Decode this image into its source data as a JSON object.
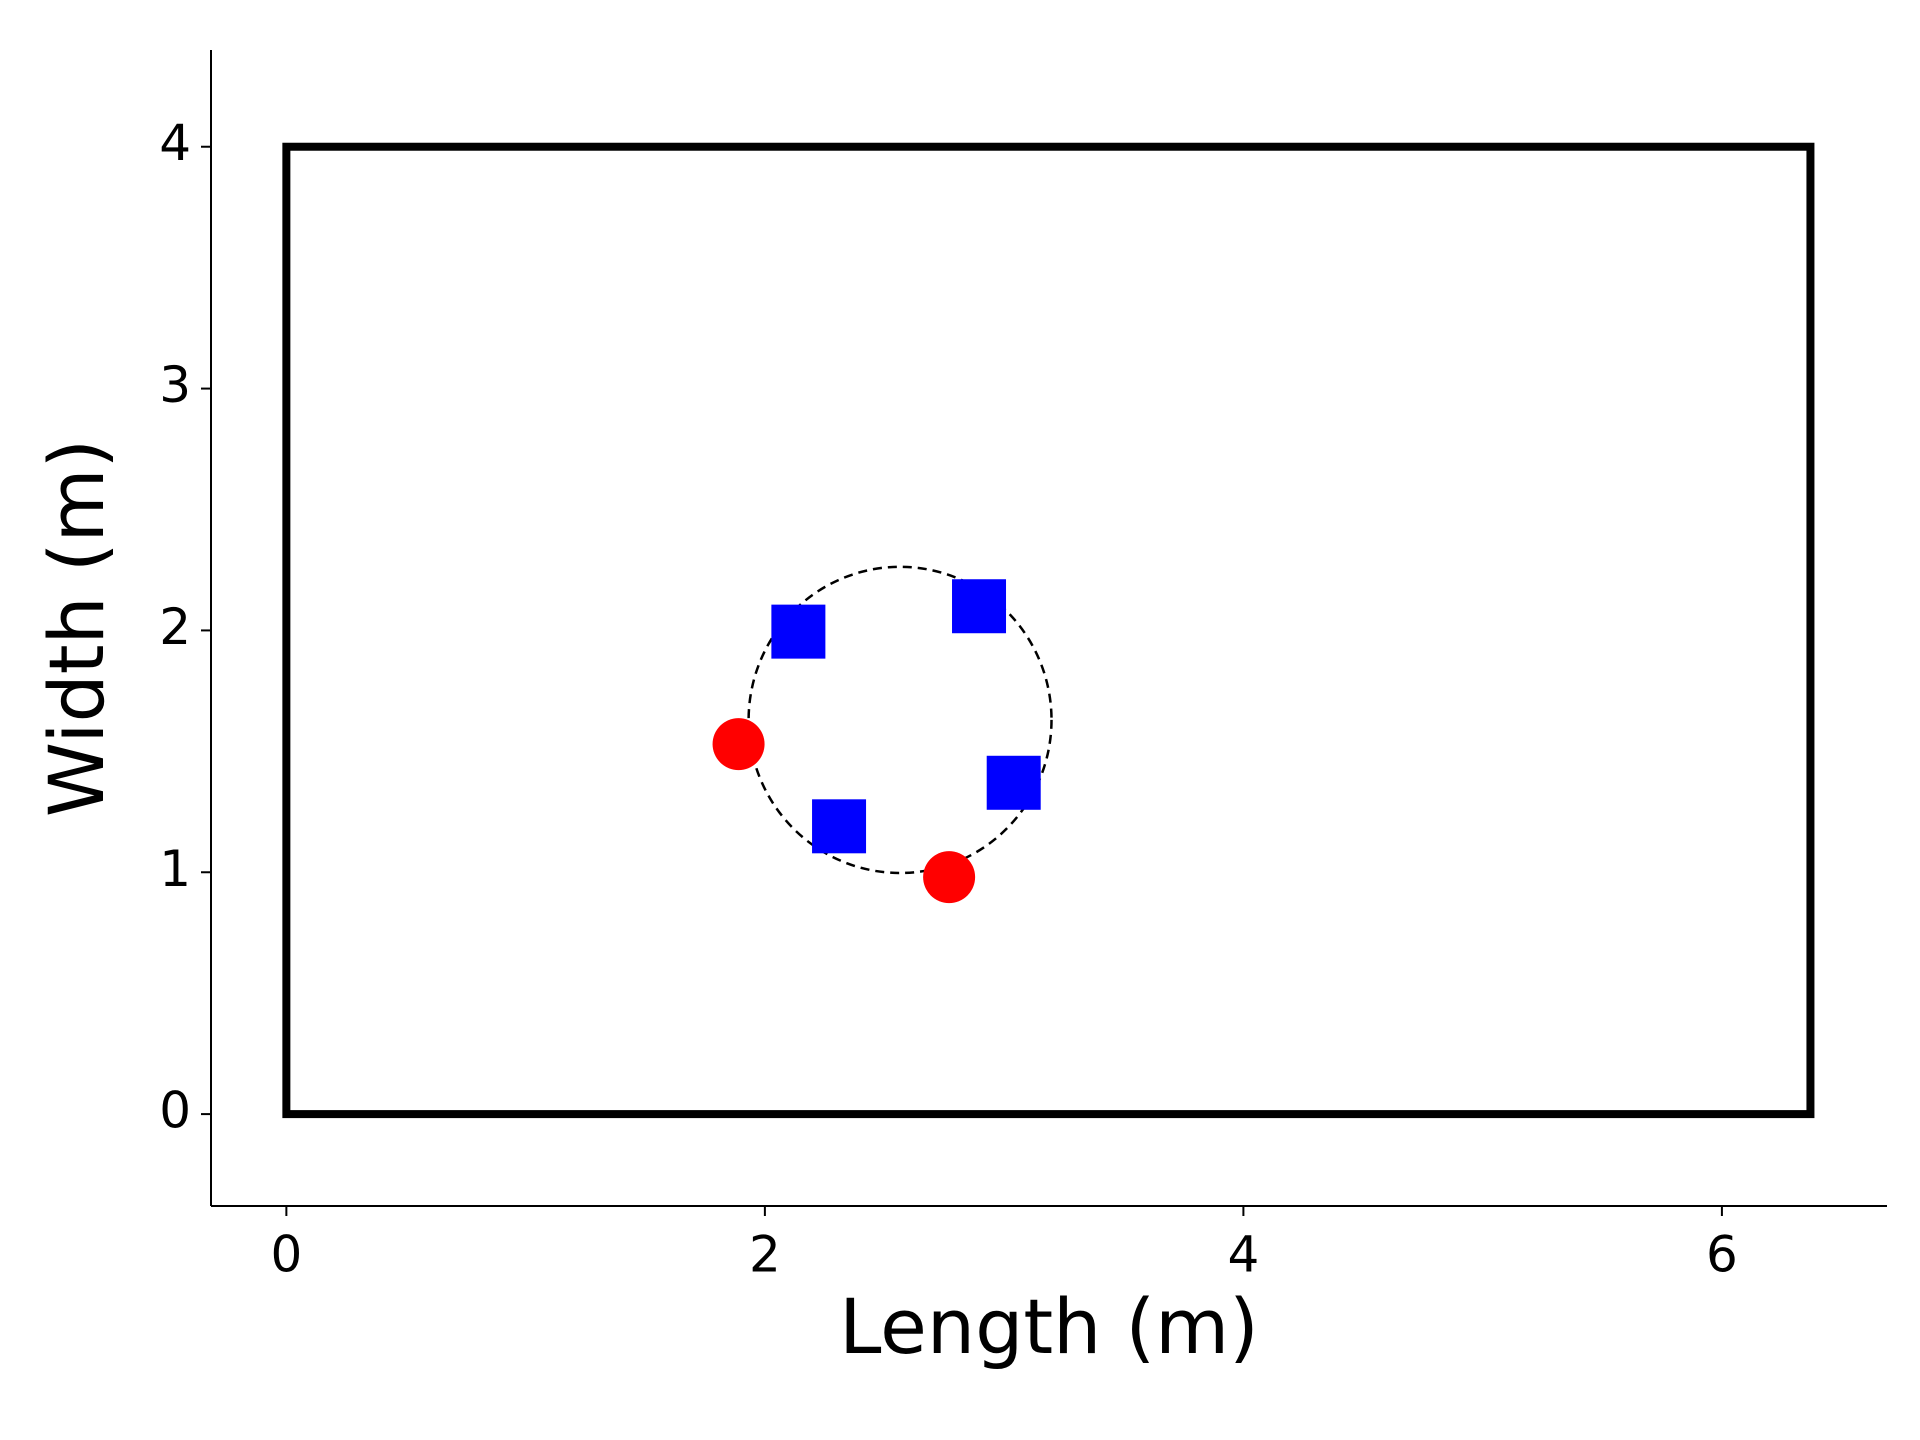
{
  "chart_data": {
    "type": "scatter",
    "xlabel": "Length (m)",
    "ylabel": "Width (m)",
    "xlim": [
      -0.315,
      6.69
    ],
    "ylim": [
      -0.38,
      4.4
    ],
    "xticks": [
      0,
      2,
      4,
      6
    ],
    "yticks": [
      0,
      1,
      2,
      3,
      4
    ],
    "grid": false,
    "shapes": [
      {
        "type": "rect",
        "x": 0,
        "y": 0,
        "width": 6.37,
        "height": 4,
        "color": "#000000"
      },
      {
        "type": "circle",
        "cx": 2.565,
        "cy": 1.63,
        "r": 0.633,
        "color": "#000000"
      }
    ],
    "series": [
      {
        "marker": "square",
        "color": "#0000ff",
        "x": [
          2.14,
          2.895,
          2.31,
          3.04
        ],
        "values": [
          1.995,
          2.1,
          1.19,
          1.37
        ]
      },
      {
        "marker": "circle",
        "color": "#ff0000",
        "x": [
          1.89,
          2.77
        ],
        "values": [
          1.53,
          0.98
        ]
      }
    ]
  }
}
